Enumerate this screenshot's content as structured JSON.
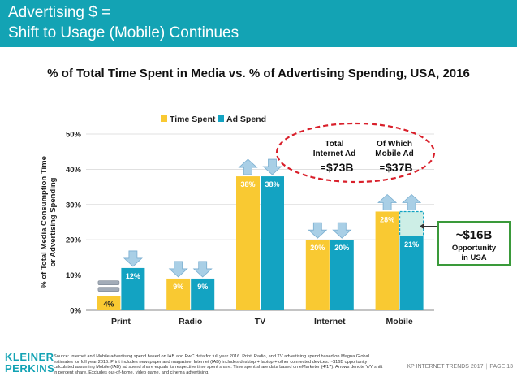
{
  "header": {
    "title_line1": "Advertising $ =",
    "title_line2": "Shift to Usage (Mobile) Continues"
  },
  "chart_data": {
    "type": "bar",
    "title": "% of Total Time Spent in Media vs. % of Advertising Spending, USA, 2016",
    "ylabel_line1": "% of Total Media Consumption Time",
    "ylabel_line2": "or Advertising Spending",
    "xlabel": "",
    "ylim": [
      0,
      50
    ],
    "yticks": [
      "0%",
      "10%",
      "20%",
      "30%",
      "40%",
      "50%"
    ],
    "ytick_values": [
      0,
      10,
      20,
      30,
      40,
      50
    ],
    "categories": [
      "Print",
      "Radio",
      "TV",
      "Internet",
      "Mobile"
    ],
    "series": [
      {
        "name": "Time Spent",
        "values": [
          4,
          9,
          38,
          20,
          28
        ],
        "labels": [
          "4%",
          "9%",
          "38%",
          "20%",
          "28%"
        ],
        "color": "#f9c932"
      },
      {
        "name": "Ad Spend",
        "values": [
          12,
          9,
          38,
          20,
          21
        ],
        "labels": [
          "12%",
          "9%",
          "38%",
          "20%",
          "21%"
        ],
        "color": "#13a3c2"
      }
    ],
    "arrows": [
      {
        "category": "Print",
        "series": "Time Spent",
        "direction": "equal"
      },
      {
        "category": "Print",
        "series": "Ad Spend",
        "direction": "down"
      },
      {
        "category": "Radio",
        "series": "Time Spent",
        "direction": "down"
      },
      {
        "category": "Radio",
        "series": "Ad Spend",
        "direction": "down"
      },
      {
        "category": "TV",
        "series": "Time Spent",
        "direction": "up"
      },
      {
        "category": "TV",
        "series": "Ad Spend",
        "direction": "down"
      },
      {
        "category": "Internet",
        "series": "Time Spent",
        "direction": "down"
      },
      {
        "category": "Internet",
        "series": "Ad Spend",
        "direction": "down"
      },
      {
        "category": "Mobile",
        "series": "Time Spent",
        "direction": "up"
      },
      {
        "category": "Mobile",
        "series": "Ad Spend",
        "direction": "up"
      }
    ],
    "mobile_gap": {
      "from": 21,
      "to": 28
    },
    "legend_position": "top-left",
    "grid": true,
    "oval_annotation": {
      "col1_line1": "Total",
      "col1_line2": "Internet Ad",
      "col1_value": "$73B",
      "col2_line1": "Of Which",
      "col2_line2": "Mobile Ad",
      "col2_value": "$37B",
      "prefix": "="
    },
    "opportunity_box": {
      "value": "~$16B",
      "line1": "Opportunity",
      "line2": "in USA"
    },
    "colors": {
      "up_arrow": "#a9cfe6",
      "down_arrow": "#a9cfe6",
      "equal_arrow": "#a3acb8",
      "oval": "#d9202b",
      "opportunity_border": "#3a9a3a",
      "gap_fill": "#cdeee6"
    }
  },
  "footer": {
    "logo_line1": "KLEINER",
    "logo_line2": "PERKINS",
    "source": "Source: Internet and Mobile advertising spend based on IAB and PwC data for full year 2016. Print, Radio, and TV advertising spend based on Magna Global estimates for full year 2016. Print includes newspaper and magazine. Internet (IAB) includes desktop + laptop + other connected devices. ~$16B opportunity calculated assuming Mobile (IAB) ad spend share equals its respective time spent share. Time spent share data based on eMarketer (4/17). Arrows denote Y/Y shift in percent share. Excludes out-of-home, video game, and cinema advertising.",
    "page_left": "KP INTERNET TRENDS 2017",
    "page_sep": "|",
    "page_right": "PAGE 13"
  }
}
